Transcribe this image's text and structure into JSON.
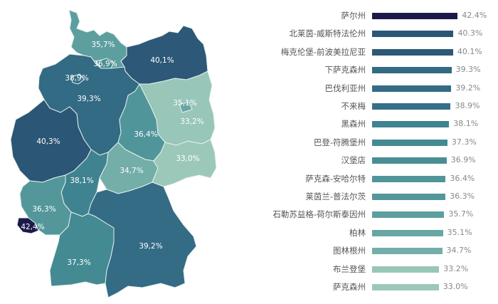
{
  "chart_data": {
    "type": "bar",
    "orientation": "horizontal",
    "title": "",
    "xlabel": "",
    "ylabel": "",
    "grid": false,
    "value_format": "percent",
    "categories": [
      "萨尔州",
      "北莱茵-威斯特法伦州",
      "梅克伦堡-前波美拉尼亚",
      "下萨克森州",
      "巴伐利亚州",
      "不来梅",
      "黑森州",
      "巴登-符腾堡州",
      "汉堡店",
      "萨克森-安哈尔特",
      "莱茵兰-普法尔茨",
      "石勒苏益格-荷尔斯泰因州",
      "柏林",
      "图林根州",
      "布兰登堡",
      "萨克森州"
    ],
    "values": [
      42.4,
      40.3,
      40.1,
      39.3,
      39.2,
      38.9,
      38.1,
      37.3,
      36.9,
      36.4,
      36.3,
      35.7,
      35.1,
      34.7,
      33.2,
      33.0
    ],
    "value_labels": [
      "42.4%",
      "40.3%",
      "40.1%",
      "39.3%",
      "39.2%",
      "38.9%",
      "38.1%",
      "37.3%",
      "36.9%",
      "36.4%",
      "36.3%",
      "35.7%",
      "35.1%",
      "34.7%",
      "33.2%",
      "33.0%"
    ],
    "colors": [
      "#1b1a4a",
      "#2b5675",
      "#2d5877",
      "#336a84",
      "#346b85",
      "#376f88",
      "#3f8390",
      "#448a92",
      "#4a8e95",
      "#50959a",
      "#53979a",
      "#5d9f9f",
      "#67a7a4",
      "#73aea9",
      "#98c6b8",
      "#9cc8ba"
    ],
    "map": {
      "type": "choropleth",
      "region": "Germany (Bundesländer)",
      "labels": [
        {
          "state": "石勒苏益格-荷尔斯泰因州",
          "text": "35,7%"
        },
        {
          "state": "汉堡店",
          "text": "36,9%"
        },
        {
          "state": "梅克伦堡-前波美拉尼亚",
          "text": "40,1%"
        },
        {
          "state": "不来梅",
          "text": "38,9%"
        },
        {
          "state": "下萨克森州",
          "text": "39,3%"
        },
        {
          "state": "柏林",
          "text": "35,1%"
        },
        {
          "state": "布兰登堡",
          "text": "33,2%"
        },
        {
          "state": "萨克森-安哈尔特",
          "text": "36,4%"
        },
        {
          "state": "北莱茵-威斯特法伦州",
          "text": "40,3%"
        },
        {
          "state": "黑森州",
          "text": "38,1%"
        },
        {
          "state": "图林根州",
          "text": "34,7%"
        },
        {
          "state": "萨克森州",
          "text": "33,0%"
        },
        {
          "state": "莱茵兰-普法尔茨",
          "text": "36,3%"
        },
        {
          "state": "萨尔州",
          "text": "42,4%"
        },
        {
          "state": "巴登-符腾堡州",
          "text": "37,3%"
        },
        {
          "state": "巴伐利亚州",
          "text": "39,2%"
        }
      ]
    }
  }
}
